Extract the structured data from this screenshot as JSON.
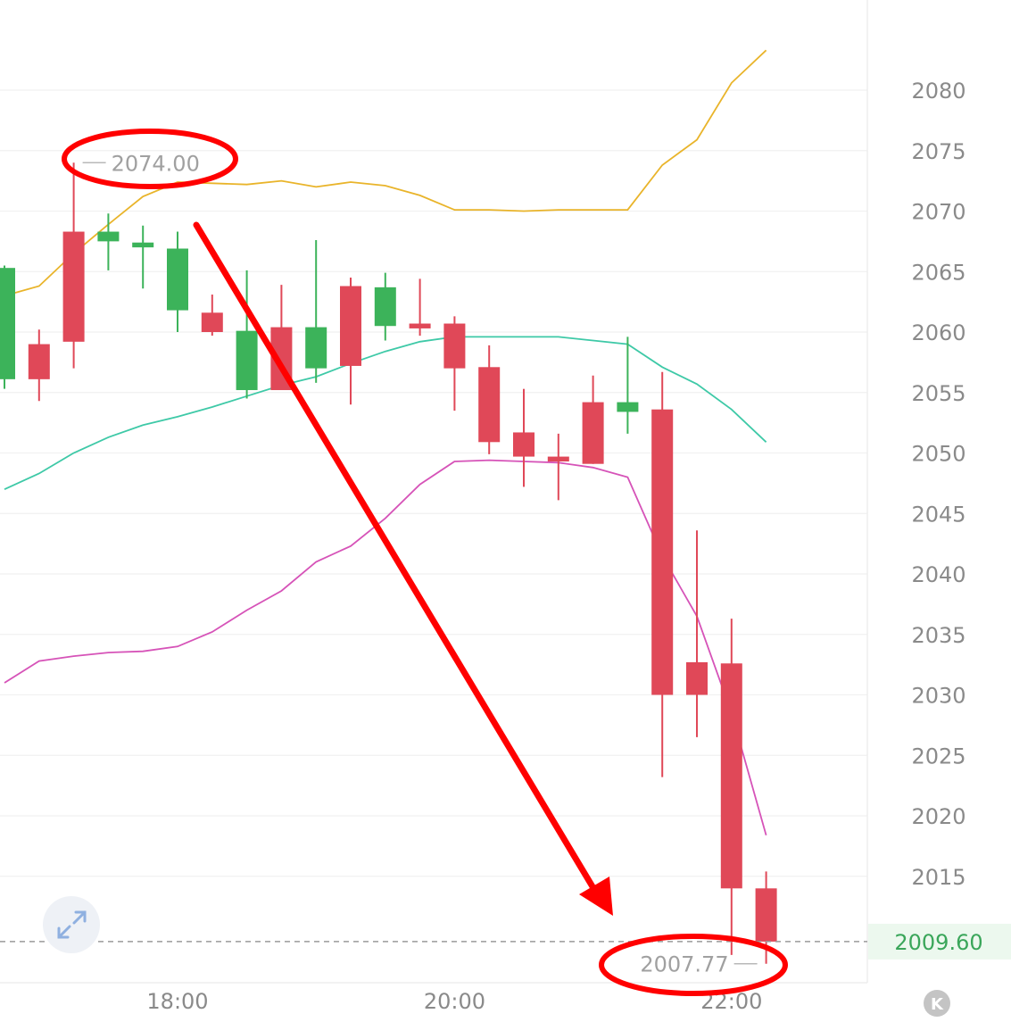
{
  "chart_data": {
    "type": "candlestick",
    "colors": {
      "up": "#3cb35a",
      "down": "#e04858",
      "upper_band": "#e9b42a",
      "middle_band": "#3ec9a7",
      "lower_band": "#d653b8",
      "annotation": "#ff0000",
      "last_price": "#3aa65a"
    },
    "y_axis": {
      "min": 2005,
      "max": 2085,
      "ticks": [
        2080,
        2075,
        2070,
        2065,
        2060,
        2055,
        2050,
        2045,
        2040,
        2035,
        2030,
        2025,
        2020,
        2015
      ],
      "side": "right"
    },
    "x_axis": {
      "ticks": [
        {
          "label": "18:00",
          "index": 5
        },
        {
          "label": "20:00",
          "index": 13
        },
        {
          "label": "22:00",
          "index": 21
        }
      ]
    },
    "candles": [
      {
        "o": 2056.1,
        "h": 2065.5,
        "l": 2055.3,
        "c": 2065.3
      },
      {
        "o": 2059.0,
        "h": 2060.2,
        "l": 2054.3,
        "c": 2056.1
      },
      {
        "o": 2068.3,
        "h": 2074.0,
        "l": 2057.0,
        "c": 2059.2
      },
      {
        "o": 2067.5,
        "h": 2069.8,
        "l": 2065.1,
        "c": 2068.3
      },
      {
        "o": 2067.0,
        "h": 2068.8,
        "l": 2063.6,
        "c": 2067.4
      },
      {
        "o": 2061.8,
        "h": 2068.3,
        "l": 2060.0,
        "c": 2066.9
      },
      {
        "o": 2061.6,
        "h": 2063.1,
        "l": 2059.7,
        "c": 2060.0
      },
      {
        "o": 2055.2,
        "h": 2065.1,
        "l": 2054.5,
        "c": 2060.1
      },
      {
        "o": 2060.4,
        "h": 2063.9,
        "l": 2055.2,
        "c": 2055.2
      },
      {
        "o": 2057.0,
        "h": 2067.6,
        "l": 2055.8,
        "c": 2060.4
      },
      {
        "o": 2063.8,
        "h": 2064.5,
        "l": 2054.0,
        "c": 2057.2
      },
      {
        "o": 2060.5,
        "h": 2064.9,
        "l": 2059.3,
        "c": 2063.7
      },
      {
        "o": 2060.7,
        "h": 2064.4,
        "l": 2059.7,
        "c": 2060.3
      },
      {
        "o": 2060.7,
        "h": 2061.3,
        "l": 2053.5,
        "c": 2057.0
      },
      {
        "o": 2057.1,
        "h": 2058.9,
        "l": 2049.9,
        "c": 2050.9
      },
      {
        "o": 2051.7,
        "h": 2055.3,
        "l": 2047.2,
        "c": 2049.7
      },
      {
        "o": 2049.7,
        "h": 2051.6,
        "l": 2046.1,
        "c": 2049.3
      },
      {
        "o": 2054.2,
        "h": 2056.4,
        "l": 2049.1,
        "c": 2049.1
      },
      {
        "o": 2053.4,
        "h": 2059.6,
        "l": 2051.6,
        "c": 2054.2
      },
      {
        "o": 2053.6,
        "h": 2056.7,
        "l": 2023.2,
        "c": 2030.0
      },
      {
        "o": 2032.7,
        "h": 2043.6,
        "l": 2026.5,
        "c": 2030.0
      },
      {
        "o": 2032.6,
        "h": 2036.3,
        "l": 2008.5,
        "c": 2014.0
      },
      {
        "o": 2014.0,
        "h": 2015.4,
        "l": 2007.77,
        "c": 2009.6
      }
    ],
    "series": [
      {
        "key": "upper",
        "values": [
          2063.0,
          2063.8,
          2066.5,
          2068.9,
          2071.2,
          2072.4,
          2072.3,
          2072.2,
          2072.5,
          2072.0,
          2072.4,
          2072.1,
          2071.3,
          2070.1,
          2070.1,
          2070.0,
          2070.1,
          2070.1,
          2070.1,
          2073.8,
          2075.9,
          2080.6,
          2083.3
        ]
      },
      {
        "key": "middle",
        "values": [
          2047.0,
          2048.3,
          2050.0,
          2051.3,
          2052.3,
          2053.0,
          2053.8,
          2054.7,
          2055.6,
          2056.3,
          2057.4,
          2058.4,
          2059.2,
          2059.6,
          2059.6,
          2059.6,
          2059.6,
          2059.3,
          2059.0,
          2057.1,
          2055.7,
          2053.6,
          2050.9
        ]
      },
      {
        "key": "lower",
        "values": [
          2031.0,
          2032.8,
          2033.2,
          2033.5,
          2033.6,
          2034.0,
          2035.2,
          2037.0,
          2038.6,
          2041.0,
          2042.3,
          2044.6,
          2047.4,
          2049.3,
          2049.4,
          2049.3,
          2049.2,
          2048.8,
          2048.0,
          2041.5,
          2036.5,
          2028.5,
          2018.4
        ]
      }
    ],
    "annotations": {
      "high_label": "2074.00",
      "low_label": "2007.77",
      "last_price_label": "2009.60",
      "last_price": 2009.6
    },
    "controls": {
      "expand_icon": "expand-arrows-icon",
      "k_badge": "K"
    }
  }
}
